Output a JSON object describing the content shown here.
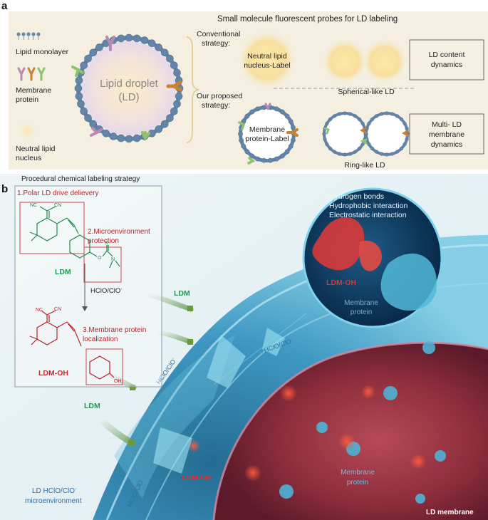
{
  "panel_a": {
    "label": "a",
    "title": "Small molecule fluorescent probes for LD labeling",
    "legend": {
      "lipid_monolayer": "Lipid monolayer",
      "membrane_protein_line1": "Membrane",
      "membrane_protein_line2": "protein",
      "neutral_lipid_line1": "Neutral lipid",
      "neutral_lipid_line2": "nucleus"
    },
    "droplet_line1": "Lipid droplet",
    "droplet_line2": "(LD)",
    "conventional_line1": "Conventional",
    "conventional_line2": "strategy:",
    "neutral_label_line1": "Neutral lipid",
    "neutral_label_line2": "nucleus-Label",
    "spherical_label": "Spherical-like LD",
    "box1_line1": "LD content",
    "box1_line2": "dynamics",
    "proposed_line1": "Our proposed",
    "proposed_line2": "strategy:",
    "membrane_label_line1": "Membrane",
    "membrane_label_line2": "protein-Label",
    "ring_label": "Ring-like LD",
    "box2_line1": "Multi- LD",
    "box2_line2": "membrane",
    "box2_line3": "dynamics"
  },
  "panel_b": {
    "label": "b",
    "strategy_title": "Procedural chemical labeling strategy",
    "step1": "1.Polar LD drive delievery",
    "step2_line1": "2.Microenvironment",
    "step2_line2": "protection",
    "step3_line1": "3.Membrane protein",
    "step3_line2": "localization",
    "ldm": "LDM",
    "ldm_oh": "LDM-OH",
    "reagent": "HClO/ClO",
    "reagent_sup": "-",
    "atoms": {
      "nc": "NC",
      "cn": "CN",
      "o": "O",
      "s": "S",
      "n": "N",
      "oh": "OH"
    },
    "interactions": [
      "Hydrogen bonds",
      "Hydrophobic interaction",
      "Electrostatic interaction"
    ],
    "inset_ldm_oh": "LDM-OH",
    "inset_membrane_line1": "Membrane",
    "inset_membrane_line2": "protein",
    "scene_ldm_1": "LDM",
    "scene_ldm_2": "LDM",
    "scene_ldm_oh": "LDM-OH",
    "hclo_1": "HClO/ClO",
    "hclo_2": "HClO/ClO",
    "hclo_3": "HClO/ClO",
    "scene_membrane_line1": "Membrane",
    "scene_membrane_line2": "protein",
    "micro_line1": "LD HClO/ClO",
    "micro_line2": "microenvironment",
    "ld_membrane": "LD membrane"
  },
  "colors": {
    "panel_a_bg": "#f4efe0",
    "dark_red": "#b8232b",
    "green": "#1f9a55",
    "blue_text": "#3a7fb6"
  }
}
